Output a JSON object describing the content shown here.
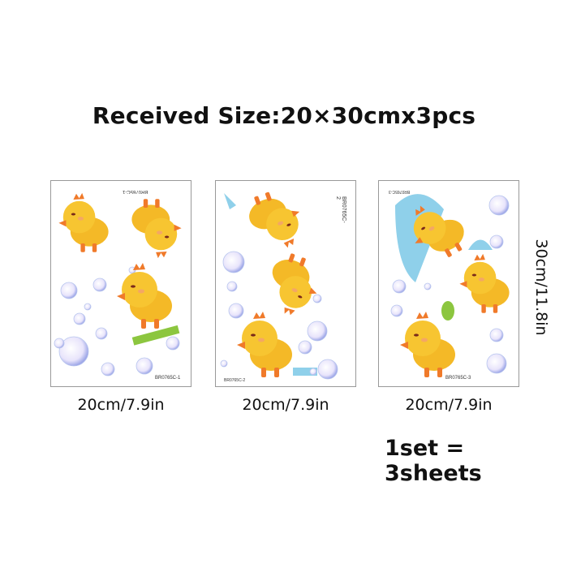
{
  "title": "Received Size:20×30cmx3pcs",
  "sheets": [
    {
      "code": "BR0765C-1",
      "top_code": "BR0765C-1",
      "width_label": "20cm/7.9in"
    },
    {
      "code": "BR0765C-2",
      "top_code": "BR0765C-2",
      "width_label": "20cm/7.9in"
    },
    {
      "code": "BR0765C-3",
      "top_code": "BR0765C-3",
      "width_label": "20cm/7.9in"
    }
  ],
  "height_label": "30cm/11.8in",
  "set_label": "1set = 3sheets",
  "colors": {
    "chick": "#f7c531",
    "beak": "#f07a2a",
    "bubble": "#c9c4f0",
    "towel": "#8fd0ea"
  }
}
